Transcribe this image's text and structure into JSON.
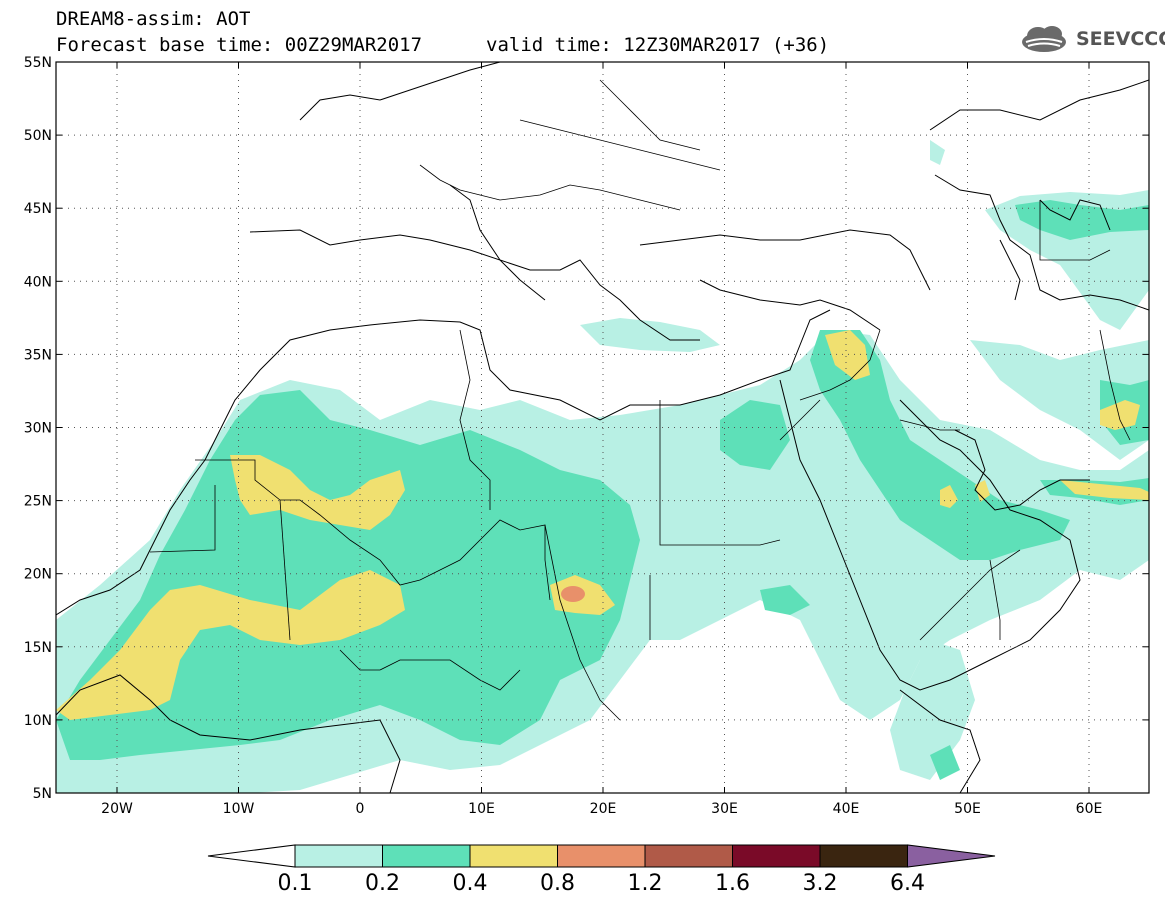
{
  "header": {
    "title": "DREAM8-assim: AOT",
    "base_time": "Forecast base time: 00Z29MAR2017",
    "valid_time": "valid time: 12Z30MAR2017 (+36)",
    "logo_text": "SEEVCCC"
  },
  "axes": {
    "lat_labels": [
      "55N",
      "50N",
      "45N",
      "40N",
      "35N",
      "30N",
      "25N",
      "20N",
      "15N",
      "10N",
      "5N"
    ],
    "lon_labels": [
      "20W",
      "10W",
      "0",
      "10E",
      "20E",
      "30E",
      "40E",
      "50E",
      "60E"
    ]
  },
  "colorbar": {
    "levels": [
      "0.1",
      "0.2",
      "0.4",
      "0.8",
      "1.2",
      "1.6",
      "3.2",
      "6.4"
    ],
    "colors": [
      "#b8f0e4",
      "#5ee0b8",
      "#f0e070",
      "#e8906a",
      "#b05a48",
      "#7a0a28",
      "#3a2510",
      "#8a60a0"
    ],
    "under_color": "#ffffff",
    "over_color": "#8a60a0"
  }
}
